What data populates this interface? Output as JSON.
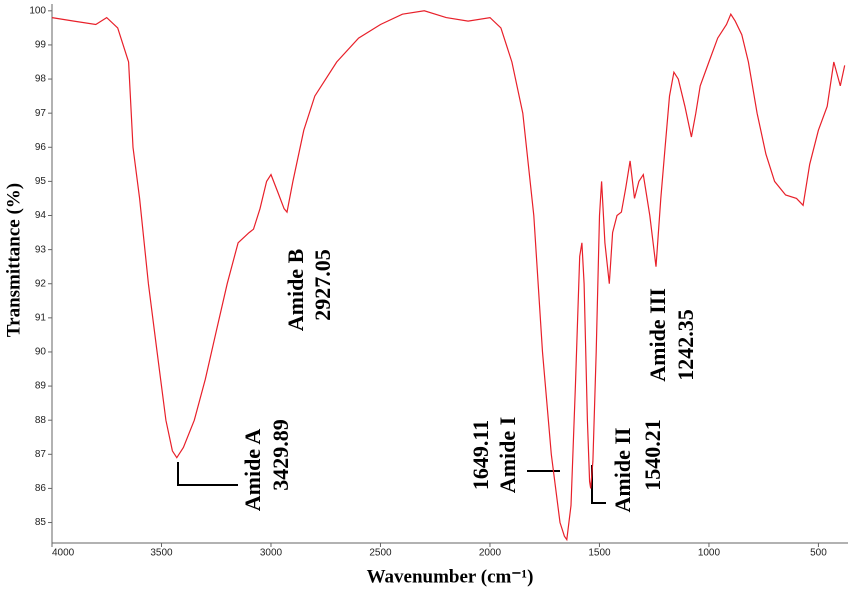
{
  "chart_data": {
    "type": "line",
    "xlabel": "Wavenumber (cm⁻¹)",
    "ylabel": "Transmittance (%)",
    "color": "#e8202a",
    "x": [
      4000,
      3900,
      3800,
      3750,
      3700,
      3650,
      3630,
      3600,
      3560,
      3520,
      3480,
      3450,
      3430,
      3400,
      3350,
      3300,
      3250,
      3200,
      3150,
      3100,
      3080,
      3050,
      3020,
      3000,
      2970,
      2940,
      2927,
      2900,
      2850,
      2800,
      2700,
      2600,
      2500,
      2400,
      2300,
      2200,
      2100,
      2000,
      1950,
      1900,
      1850,
      1800,
      1760,
      1720,
      1680,
      1660,
      1649,
      1630,
      1610,
      1590,
      1580,
      1570,
      1555,
      1545,
      1540,
      1530,
      1515,
      1500,
      1490,
      1475,
      1455,
      1440,
      1420,
      1400,
      1380,
      1360,
      1340,
      1320,
      1300,
      1270,
      1242,
      1220,
      1200,
      1180,
      1160,
      1140,
      1110,
      1080,
      1060,
      1040,
      1000,
      960,
      920,
      900,
      880,
      850,
      820,
      780,
      740,
      700,
      650,
      600,
      570,
      540,
      500,
      460,
      430,
      400,
      380
    ],
    "values": [
      99.8,
      99.7,
      99.6,
      99.8,
      99.5,
      98.5,
      96,
      94.5,
      92,
      90,
      88,
      87.1,
      86.9,
      87.2,
      88,
      89.2,
      90.6,
      92,
      93.2,
      93.5,
      93.6,
      94.2,
      95,
      95.2,
      94.7,
      94.2,
      94.1,
      95,
      96.5,
      97.5,
      98.5,
      99.2,
      99.6,
      99.9,
      100,
      99.8,
      99.7,
      99.8,
      99.5,
      98.5,
      97,
      94,
      90,
      87,
      85,
      84.6,
      84.5,
      85.5,
      89,
      92.8,
      93.2,
      92,
      88,
      86.2,
      86,
      86.8,
      90,
      94,
      95,
      93.2,
      92,
      93.5,
      94,
      94.1,
      94.8,
      95.6,
      94.5,
      95,
      95.2,
      94,
      92.5,
      94.5,
      96,
      97.5,
      98.2,
      98,
      97.2,
      96.3,
      97,
      97.8,
      98.5,
      99.2,
      99.6,
      99.9,
      99.7,
      99.3,
      98.5,
      97,
      95.8,
      95,
      94.6,
      94.5,
      94.3,
      95.5,
      96.5,
      97.2,
      98.5,
      97.8,
      98.4
    ],
    "xlim": [
      4000,
      365
    ],
    "xticks": [
      4000,
      3500,
      3000,
      2500,
      2000,
      1500,
      1000,
      500
    ],
    "ylim": [
      84.4,
      100.2
    ],
    "yticks": [
      85,
      86,
      87,
      88,
      89,
      90,
      91,
      92,
      93,
      94,
      95,
      96,
      97,
      98,
      99,
      100
    ],
    "annotations": [
      "Amide A",
      "3429.89",
      "Amide B",
      "2927.05",
      "1649.11",
      "Amide I",
      "Amide II",
      "1540.21",
      "Amide III",
      "1242.35"
    ]
  }
}
